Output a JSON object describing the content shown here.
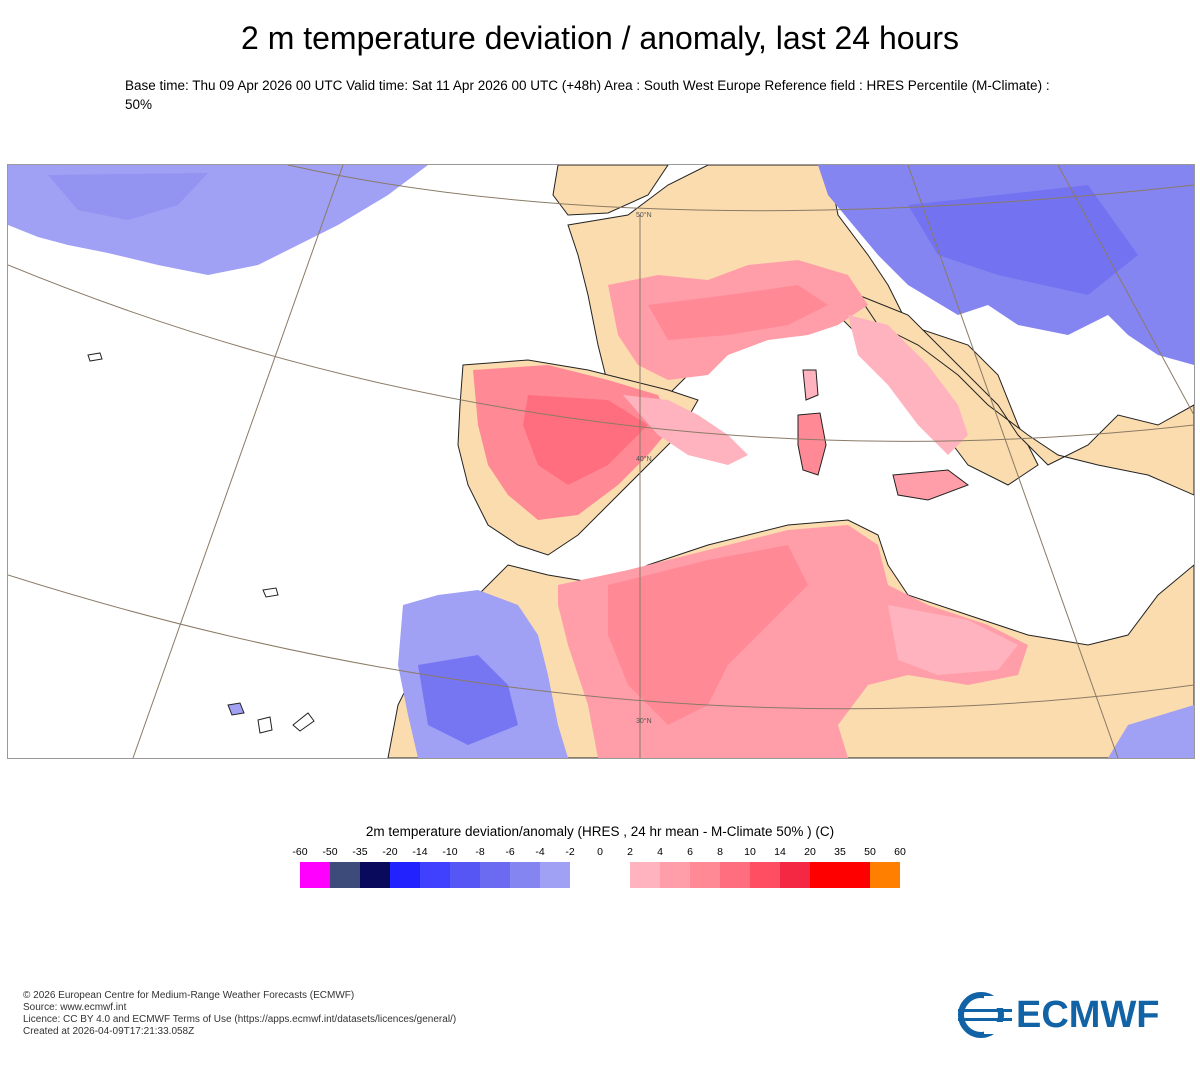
{
  "header": {
    "title": "2 m temperature deviation / anomaly, last 24 hours",
    "subtitle": "Base time: Thu 09 Apr 2026 00 UTC Valid time: Sat 11 Apr 2026 00 UTC (+48h) Area : South West Europe Reference field : HRES Percentile (M-Climate) : 50%"
  },
  "map": {
    "latitude_labels": [
      "50°N",
      "40°N",
      "30°N"
    ],
    "colors": {
      "ocean": "#ffffff",
      "land_neutral": "#fbdcae",
      "graticule": "#8a7a66",
      "coast": "#222222"
    }
  },
  "legend": {
    "title": "2m temperature deviation/anomaly (HRES , 24 hr mean - M-Climate 50% ) (C)",
    "ticks": [
      "-60",
      "-50",
      "-35",
      "-20",
      "-14",
      "-10",
      "-8",
      "-6",
      "-4",
      "-2",
      "0",
      "2",
      "4",
      "6",
      "8",
      "10",
      "14",
      "20",
      "35",
      "50",
      "60"
    ],
    "colors": [
      "#ff00ff",
      "#3d4b7a",
      "#0a0a5c",
      "#2222ff",
      "#4040ff",
      "#5656f5",
      "#6b6bf2",
      "#8585f2",
      "#a0a0f5",
      "#ffffff",
      "#ffffff",
      "#ffb3be",
      "#ff9ea8",
      "#ff8a96",
      "#ff6e7e",
      "#ff4d62",
      "#f52844",
      "#ff0000",
      "#ff0000",
      "#ff8000"
    ]
  },
  "footer": {
    "copyright": "© 2026 European Centre for Medium-Range Weather Forecasts (ECMWF)",
    "source": "Source: www.ecmwf.int",
    "licence": "Licence: CC BY 4.0 and ECMWF Terms of Use (https://apps.ecmwf.int/datasets/licences/general/)",
    "created": "Created at 2026-04-09T17:21:33.058Z",
    "logo_text": "ECMWF",
    "logo_color": "#1163a6"
  }
}
